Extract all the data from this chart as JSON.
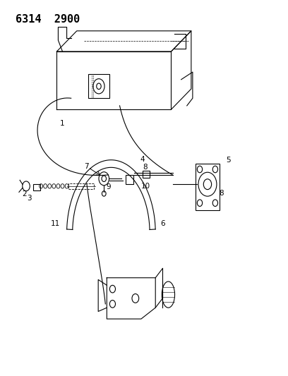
{
  "title": "6314  2900",
  "background_color": "#ffffff",
  "line_color": "#000000",
  "title_fontsize": 11,
  "title_fontweight": "bold"
}
